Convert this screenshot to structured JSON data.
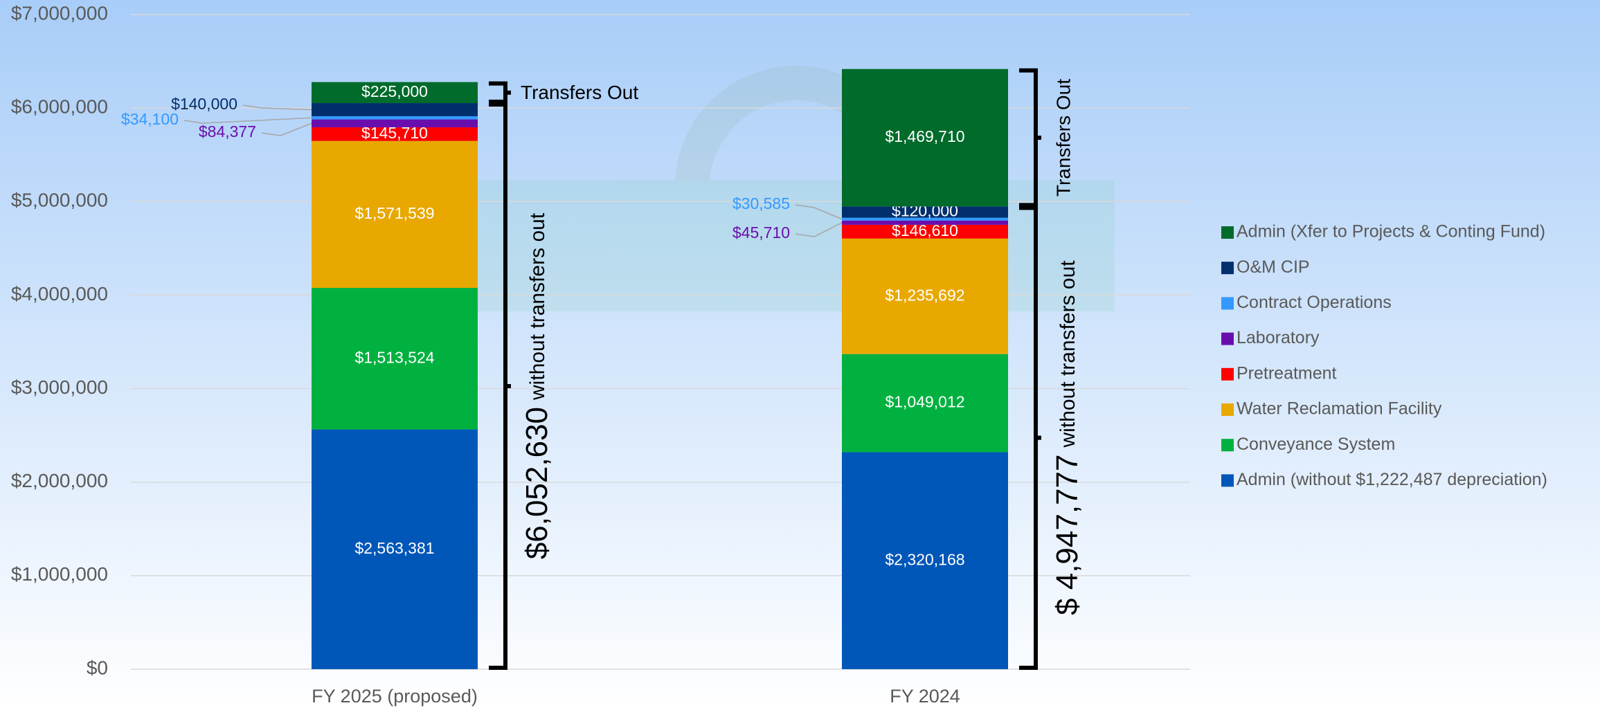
{
  "chart_data": {
    "type": "stacked_bar",
    "categories": [
      "FY 2025 (proposed)",
      "FY 2024"
    ],
    "series": [
      {
        "name": "Admin (without $1,222,487 depreciation)",
        "color": "#0057b8",
        "values": [
          2563381,
          2320168
        ],
        "value_labels": [
          "$2,563,381",
          "$2,320,168"
        ]
      },
      {
        "name": "Conveyance System",
        "color": "#00b140",
        "values": [
          1513524,
          1049012
        ],
        "value_labels": [
          "$1,513,524",
          "$1,049,012"
        ]
      },
      {
        "name": "Water Reclamation Facility",
        "color": "#e8a800",
        "values": [
          1571539,
          1235692
        ],
        "value_labels": [
          "$1,571,539",
          "$1,235,692"
        ]
      },
      {
        "name": "Pretreatment",
        "color": "#ff0000",
        "values": [
          145710,
          146610
        ],
        "value_labels": [
          "$145,710",
          "$146,610"
        ]
      },
      {
        "name": "Laboratory",
        "color": "#6a0dad",
        "values": [
          84377,
          45710
        ],
        "value_labels": [
          "$84,377",
          "$45,710"
        ]
      },
      {
        "name": "Contract Operations",
        "color": "#3399ff",
        "values": [
          34100,
          30585
        ],
        "value_labels": [
          "$34,100",
          "$30,585"
        ]
      },
      {
        "name": "O&M CIP",
        "color": "#002f6c",
        "values": [
          140000,
          120000
        ],
        "value_labels": [
          "$140,000",
          "$120,000"
        ]
      },
      {
        "name": "Admin (Xfer to Projects & Conting Fund)",
        "color": "#006b2b",
        "values": [
          225000,
          1469710
        ],
        "value_labels": [
          "$225,000",
          "$1,469,710"
        ]
      }
    ],
    "ylim": [
      0,
      7000000
    ],
    "yticks": [
      {
        "value": 0,
        "label": "$0"
      },
      {
        "value": 1000000,
        "label": "$1,000,000"
      },
      {
        "value": 2000000,
        "label": "$2,000,000"
      },
      {
        "value": 3000000,
        "label": "$3,000,000"
      },
      {
        "value": 4000000,
        "label": "$4,000,000"
      },
      {
        "value": 5000000,
        "label": "$5,000,000"
      },
      {
        "value": 6000000,
        "label": "$6,000,000"
      },
      {
        "value": 7000000,
        "label": "$7,000,000"
      }
    ],
    "grid": true,
    "legend": "right",
    "annotations": [
      {
        "label": "Transfers Out",
        "total": "$6,052,630",
        "note": "without transfers out"
      },
      {
        "label": "Transfers Out",
        "total": "$ 4,947,777",
        "note": "without transfers out"
      }
    ]
  }
}
